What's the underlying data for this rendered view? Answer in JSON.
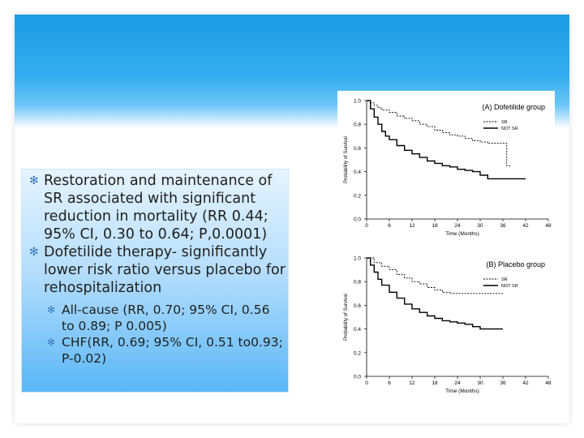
{
  "bullets": {
    "b1": "Restoration and maintenance of SR associated with significant reduction in mortality (RR 0.44; 95% CI, 0.30 to 0.64; P,0.0001)",
    "b2": "Dofetilide therapy- significantly lower risk ratio versus placebo for rehospitalization",
    "b3": "All-cause (RR, 0.70; 95% CI, 0.56 to 0.89; P 0.005)",
    "b4": "CHF(RR, 0.69; 95% CI, 0.51 to0.93; P-0.02)"
  },
  "colors": {
    "header": "#1b9be3",
    "panel_top": "#e6f4ff",
    "panel_bottom": "#5ab7f6"
  },
  "chart_data": [
    {
      "type": "line",
      "title": "(A) Dofetilide group",
      "xlabel": "Time (Months)",
      "ylabel": "Probability of Survival",
      "xticks": [
        "0",
        "6",
        "12",
        "18",
        "24",
        "30",
        "36",
        "42",
        "48"
      ],
      "yticks": [
        "0.0",
        "0.2",
        "0.4",
        "0.6",
        "0.8",
        "1.0"
      ],
      "xlim": [
        0,
        48
      ],
      "ylim": [
        0,
        1
      ],
      "series": [
        {
          "name": "SR",
          "style": "dashed",
          "x": [
            0,
            1,
            2,
            3,
            4,
            6,
            8,
            10,
            12,
            14,
            16,
            18,
            20,
            22,
            24,
            26,
            28,
            30,
            32,
            34,
            36,
            37,
            38
          ],
          "y": [
            1.0,
            0.98,
            0.96,
            0.94,
            0.92,
            0.9,
            0.87,
            0.85,
            0.83,
            0.8,
            0.78,
            0.75,
            0.73,
            0.71,
            0.7,
            0.68,
            0.66,
            0.65,
            0.64,
            0.64,
            0.64,
            0.45,
            0.45
          ]
        },
        {
          "name": "NOT SR",
          "style": "solid",
          "x": [
            0,
            1,
            2,
            3,
            4,
            5,
            6,
            8,
            10,
            12,
            14,
            16,
            18,
            20,
            22,
            24,
            26,
            28,
            30,
            32,
            34,
            36,
            38,
            40,
            42
          ],
          "y": [
            1.0,
            0.93,
            0.86,
            0.8,
            0.74,
            0.7,
            0.67,
            0.62,
            0.58,
            0.55,
            0.52,
            0.49,
            0.47,
            0.45,
            0.44,
            0.42,
            0.41,
            0.4,
            0.37,
            0.34,
            0.34,
            0.34,
            0.34,
            0.34,
            0.34
          ]
        }
      ]
    },
    {
      "type": "line",
      "title": "(B) Placebo group",
      "xlabel": "Time (Months)",
      "ylabel": "Probability of Survival",
      "xticks": [
        "0",
        "6",
        "12",
        "18",
        "24",
        "30",
        "36",
        "42",
        "48"
      ],
      "yticks": [
        "0.0",
        "0.2",
        "0.4",
        "0.6",
        "0.8",
        "1.0"
      ],
      "xlim": [
        0,
        48
      ],
      "ylim": [
        0,
        1
      ],
      "series": [
        {
          "name": "SR",
          "style": "dashed",
          "x": [
            0,
            2,
            4,
            6,
            8,
            10,
            12,
            14,
            16,
            18,
            20,
            22,
            24,
            26,
            28,
            30,
            32,
            34,
            36
          ],
          "y": [
            1.0,
            0.96,
            0.93,
            0.9,
            0.86,
            0.83,
            0.8,
            0.78,
            0.75,
            0.73,
            0.71,
            0.7,
            0.7,
            0.7,
            0.7,
            0.7,
            0.7,
            0.7,
            0.7
          ]
        },
        {
          "name": "NOT SR",
          "style": "solid",
          "x": [
            0,
            1,
            2,
            3,
            4,
            6,
            8,
            10,
            12,
            14,
            16,
            18,
            20,
            22,
            24,
            26,
            28,
            30,
            32,
            34,
            36
          ],
          "y": [
            1.0,
            0.94,
            0.88,
            0.82,
            0.77,
            0.71,
            0.66,
            0.61,
            0.57,
            0.54,
            0.51,
            0.49,
            0.47,
            0.46,
            0.45,
            0.44,
            0.42,
            0.4,
            0.4,
            0.4,
            0.4
          ]
        }
      ]
    }
  ]
}
